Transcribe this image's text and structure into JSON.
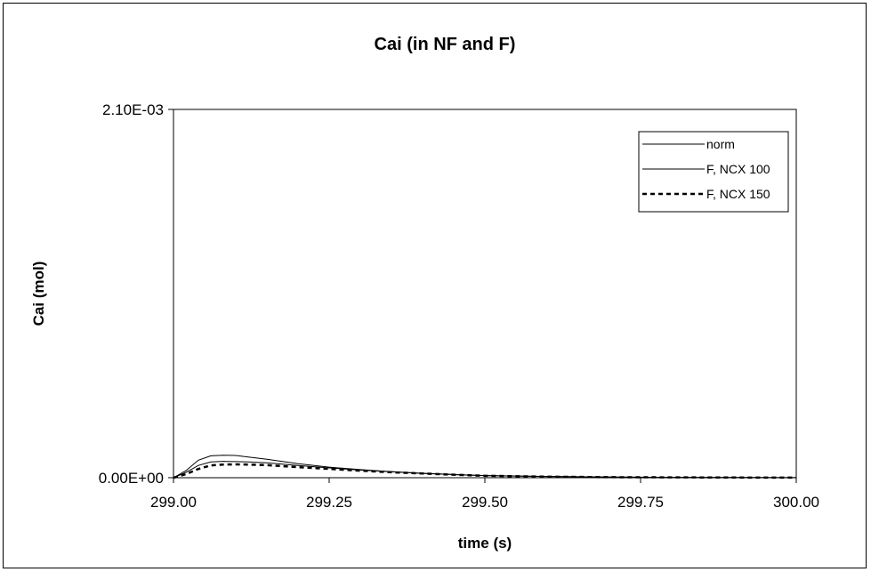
{
  "chart_data": {
    "type": "line",
    "title": "Cai (in NF and F)",
    "xlabel": "time (s)",
    "ylabel": "Cai (mol)",
    "xlim": [
      299.0,
      300.0
    ],
    "ylim": [
      0,
      0.0021
    ],
    "x_tick_labels": [
      "299.00",
      "299.25",
      "299.50",
      "299.75",
      "300.00"
    ],
    "x_ticks": [
      299.0,
      299.25,
      299.5,
      299.75,
      300.0
    ],
    "y_tick_labels": [
      "0.00E+00",
      "2.10E-03"
    ],
    "y_ticks": [
      0,
      0.0021
    ],
    "grid": false,
    "legend_position": "top-right",
    "series": [
      {
        "name": "norm",
        "color": "#000000",
        "style": "thin-solid",
        "x": [
          299.0,
          299.02,
          299.04,
          299.06,
          299.08,
          299.1,
          299.12,
          299.15,
          299.2,
          299.25,
          299.3,
          299.35,
          299.4,
          299.45,
          299.5,
          299.6,
          299.7,
          299.8,
          299.9,
          300.0
        ],
        "y": [
          0,
          4e-05,
          0.0001,
          0.000125,
          0.000128,
          0.000127,
          0.000118,
          0.000105,
          8e-05,
          6e-05,
          4.6e-05,
          3.4e-05,
          2.5e-05,
          1.8e-05,
          1.2e-05,
          7e-06,
          4e-06,
          2e-06,
          1e-06,
          5e-07
        ]
      },
      {
        "name": "F, NCX 100",
        "color": "#000000",
        "style": "thin-solid",
        "x": [
          299.0,
          299.02,
          299.04,
          299.06,
          299.08,
          299.1,
          299.12,
          299.15,
          299.2,
          299.25,
          299.3,
          299.35,
          299.4,
          299.45,
          299.5,
          299.6,
          299.7,
          299.8,
          299.9,
          300.0
        ],
        "y": [
          0,
          3e-05,
          7e-05,
          9e-05,
          9.3e-05,
          9.2e-05,
          9e-05,
          8.5e-05,
          7e-05,
          5.6e-05,
          4.4e-05,
          3.4e-05,
          2.5e-05,
          1.8e-05,
          1.2e-05,
          7e-06,
          4e-06,
          2e-06,
          1e-06,
          5e-07
        ]
      },
      {
        "name": "F, NCX 150",
        "color": "#000000",
        "style": "dashed-thick",
        "x": [
          299.0,
          299.02,
          299.04,
          299.06,
          299.08,
          299.1,
          299.12,
          299.15,
          299.2,
          299.25,
          299.3,
          299.35,
          299.4,
          299.45,
          299.5,
          299.6,
          299.7,
          299.8,
          299.9,
          300.0
        ],
        "y": [
          0,
          2e-05,
          5e-05,
          7e-05,
          7.5e-05,
          7.6e-05,
          7.5e-05,
          7.2e-05,
          6e-05,
          5e-05,
          4e-05,
          3.1e-05,
          2.4e-05,
          1.7e-05,
          1.1e-05,
          6e-06,
          3e-06,
          2e-06,
          1e-06,
          5e-07
        ]
      }
    ]
  }
}
